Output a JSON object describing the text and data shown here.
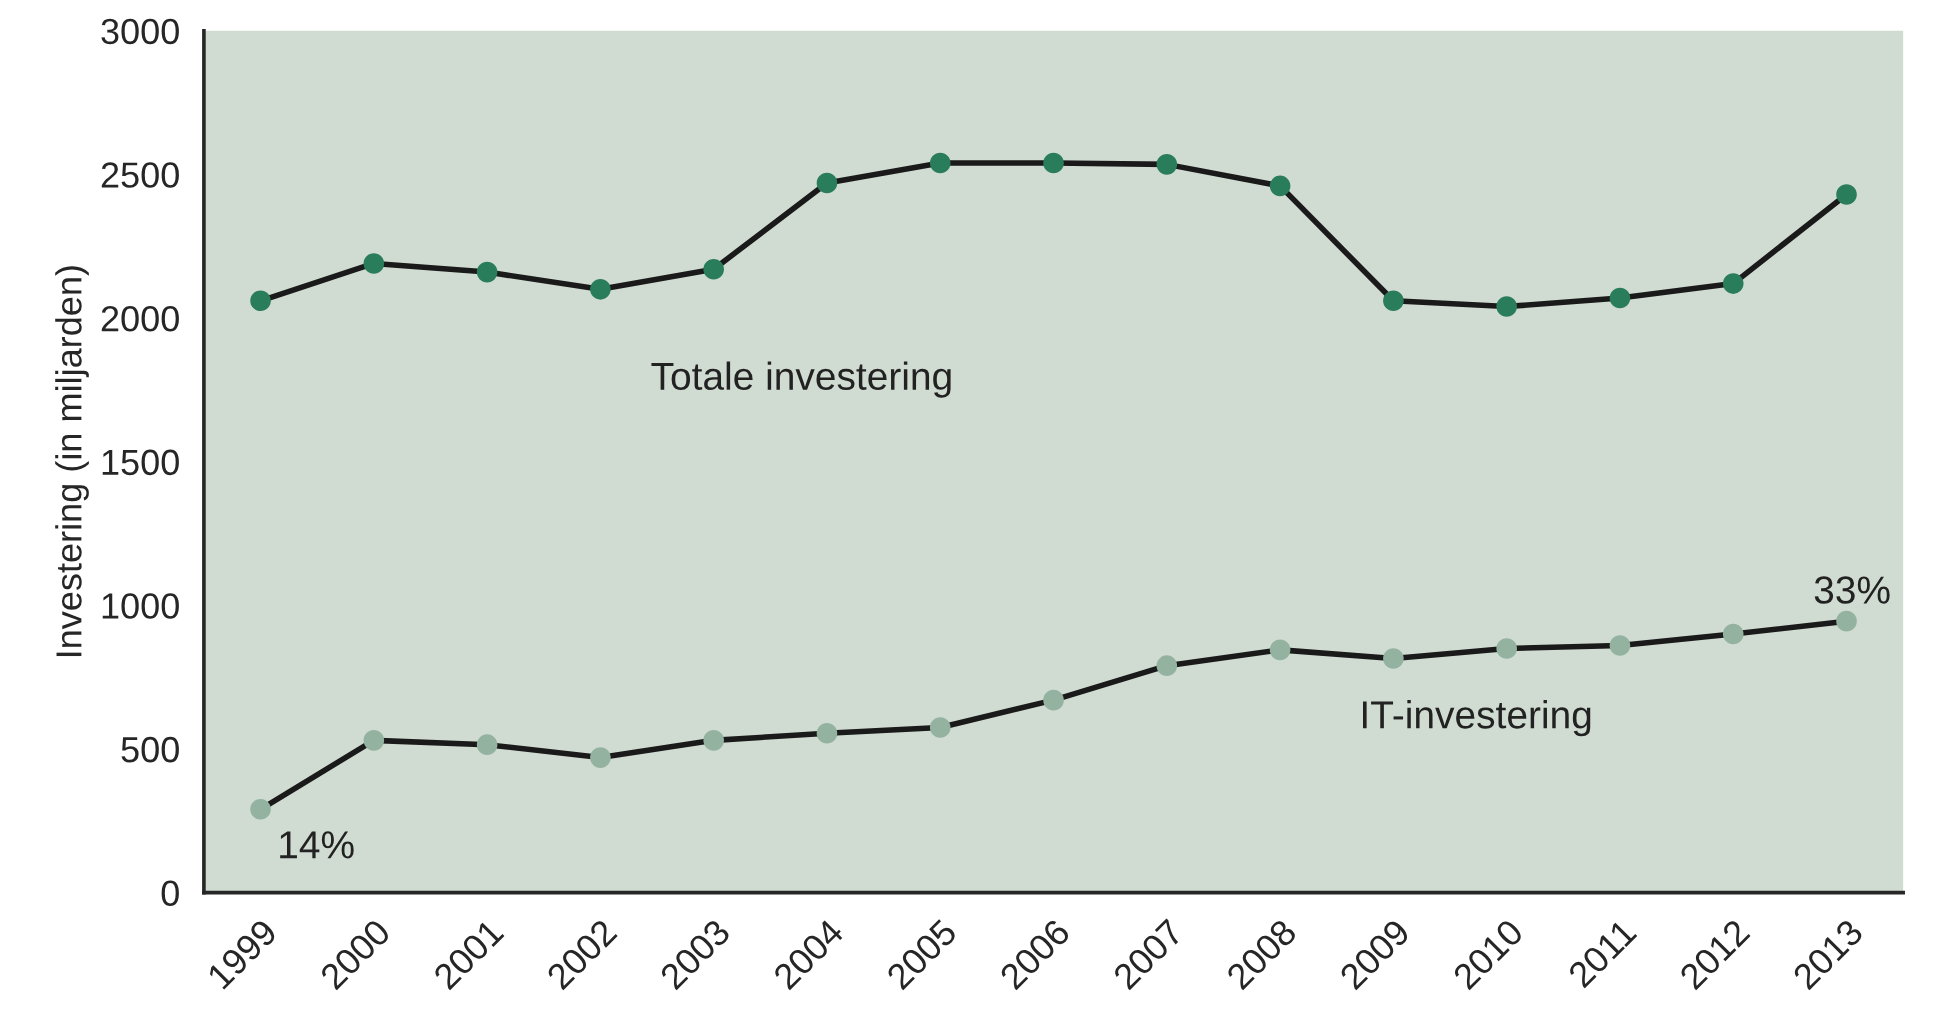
{
  "chart_data": {
    "type": "line",
    "ylabel": "Investering (in miljarden)",
    "categories": [
      "1999",
      "2000",
      "2001",
      "2002",
      "2003",
      "2004",
      "2005",
      "2006",
      "2007",
      "2008",
      "2009",
      "2010",
      "2011",
      "2012",
      "2013"
    ],
    "series": [
      {
        "color": "#2a7d5a",
        "values": [
          2060,
          2190,
          2160,
          2100,
          2170,
          2470,
          2540,
          2540,
          2535,
          2460,
          2060,
          2040,
          2070,
          2120,
          2430
        ]
      },
      {
        "color": "#93b3a0",
        "values": [
          290,
          530,
          515,
          470,
          530,
          555,
          575,
          670,
          790,
          845,
          815,
          850,
          860,
          900,
          945
        ]
      }
    ],
    "ylim": [
      0,
      3000
    ],
    "yticks": [
      0,
      500,
      1000,
      1500,
      2000,
      2500,
      3000
    ],
    "grid": false,
    "marker": "circle",
    "line_style": "solid",
    "annotations": [
      "Totale investering",
      "IT-investering",
      {
        "text": "14%",
        "x": "1999",
        "y": 290
      },
      {
        "text": "33%",
        "x": "2013",
        "y": 945
      }
    ]
  }
}
